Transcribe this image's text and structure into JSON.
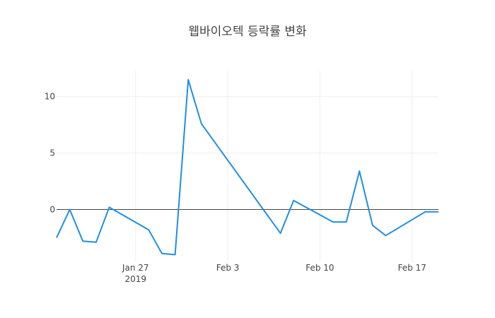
{
  "chart_data": {
    "type": "line",
    "title": "웹바이오텍 등락률 변화",
    "xlabel": "",
    "ylabel": "",
    "x": [
      "2019-01-21",
      "2019-01-22",
      "2019-01-23",
      "2019-01-24",
      "2019-01-25",
      "2019-01-28",
      "2019-01-29",
      "2019-01-30",
      "2019-01-31",
      "2019-02-01",
      "2019-02-07",
      "2019-02-08",
      "2019-02-11",
      "2019-02-12",
      "2019-02-13",
      "2019-02-14",
      "2019-02-15",
      "2019-02-18",
      "2019-02-19"
    ],
    "series": [
      {
        "values": [
          -2.5,
          0.0,
          -2.8,
          -2.9,
          0.2,
          -1.8,
          -3.9,
          -4.0,
          11.5,
          7.6,
          -2.1,
          0.8,
          -1.1,
          -1.1,
          3.4,
          -1.4,
          -2.3,
          -0.2,
          -0.2
        ],
        "color": "#1f8ee6"
      }
    ],
    "xticks": [
      {
        "date": "2019-01-27",
        "label": "Jan 27",
        "sublabel": "2019"
      },
      {
        "date": "2019-02-03",
        "label": "Feb 3",
        "sublabel": ""
      },
      {
        "date": "2019-02-10",
        "label": "Feb 10",
        "sublabel": ""
      },
      {
        "date": "2019-02-17",
        "label": "Feb 17",
        "sublabel": ""
      }
    ],
    "yticks": [
      {
        "value": 10,
        "label": "10"
      },
      {
        "value": 5,
        "label": "5"
      },
      {
        "value": 0,
        "label": "0"
      }
    ],
    "xlim": [
      "2019-01-21",
      "2019-02-19"
    ],
    "ylim": [
      -4.6,
      12.3
    ],
    "grid": true,
    "zero_line": true
  }
}
